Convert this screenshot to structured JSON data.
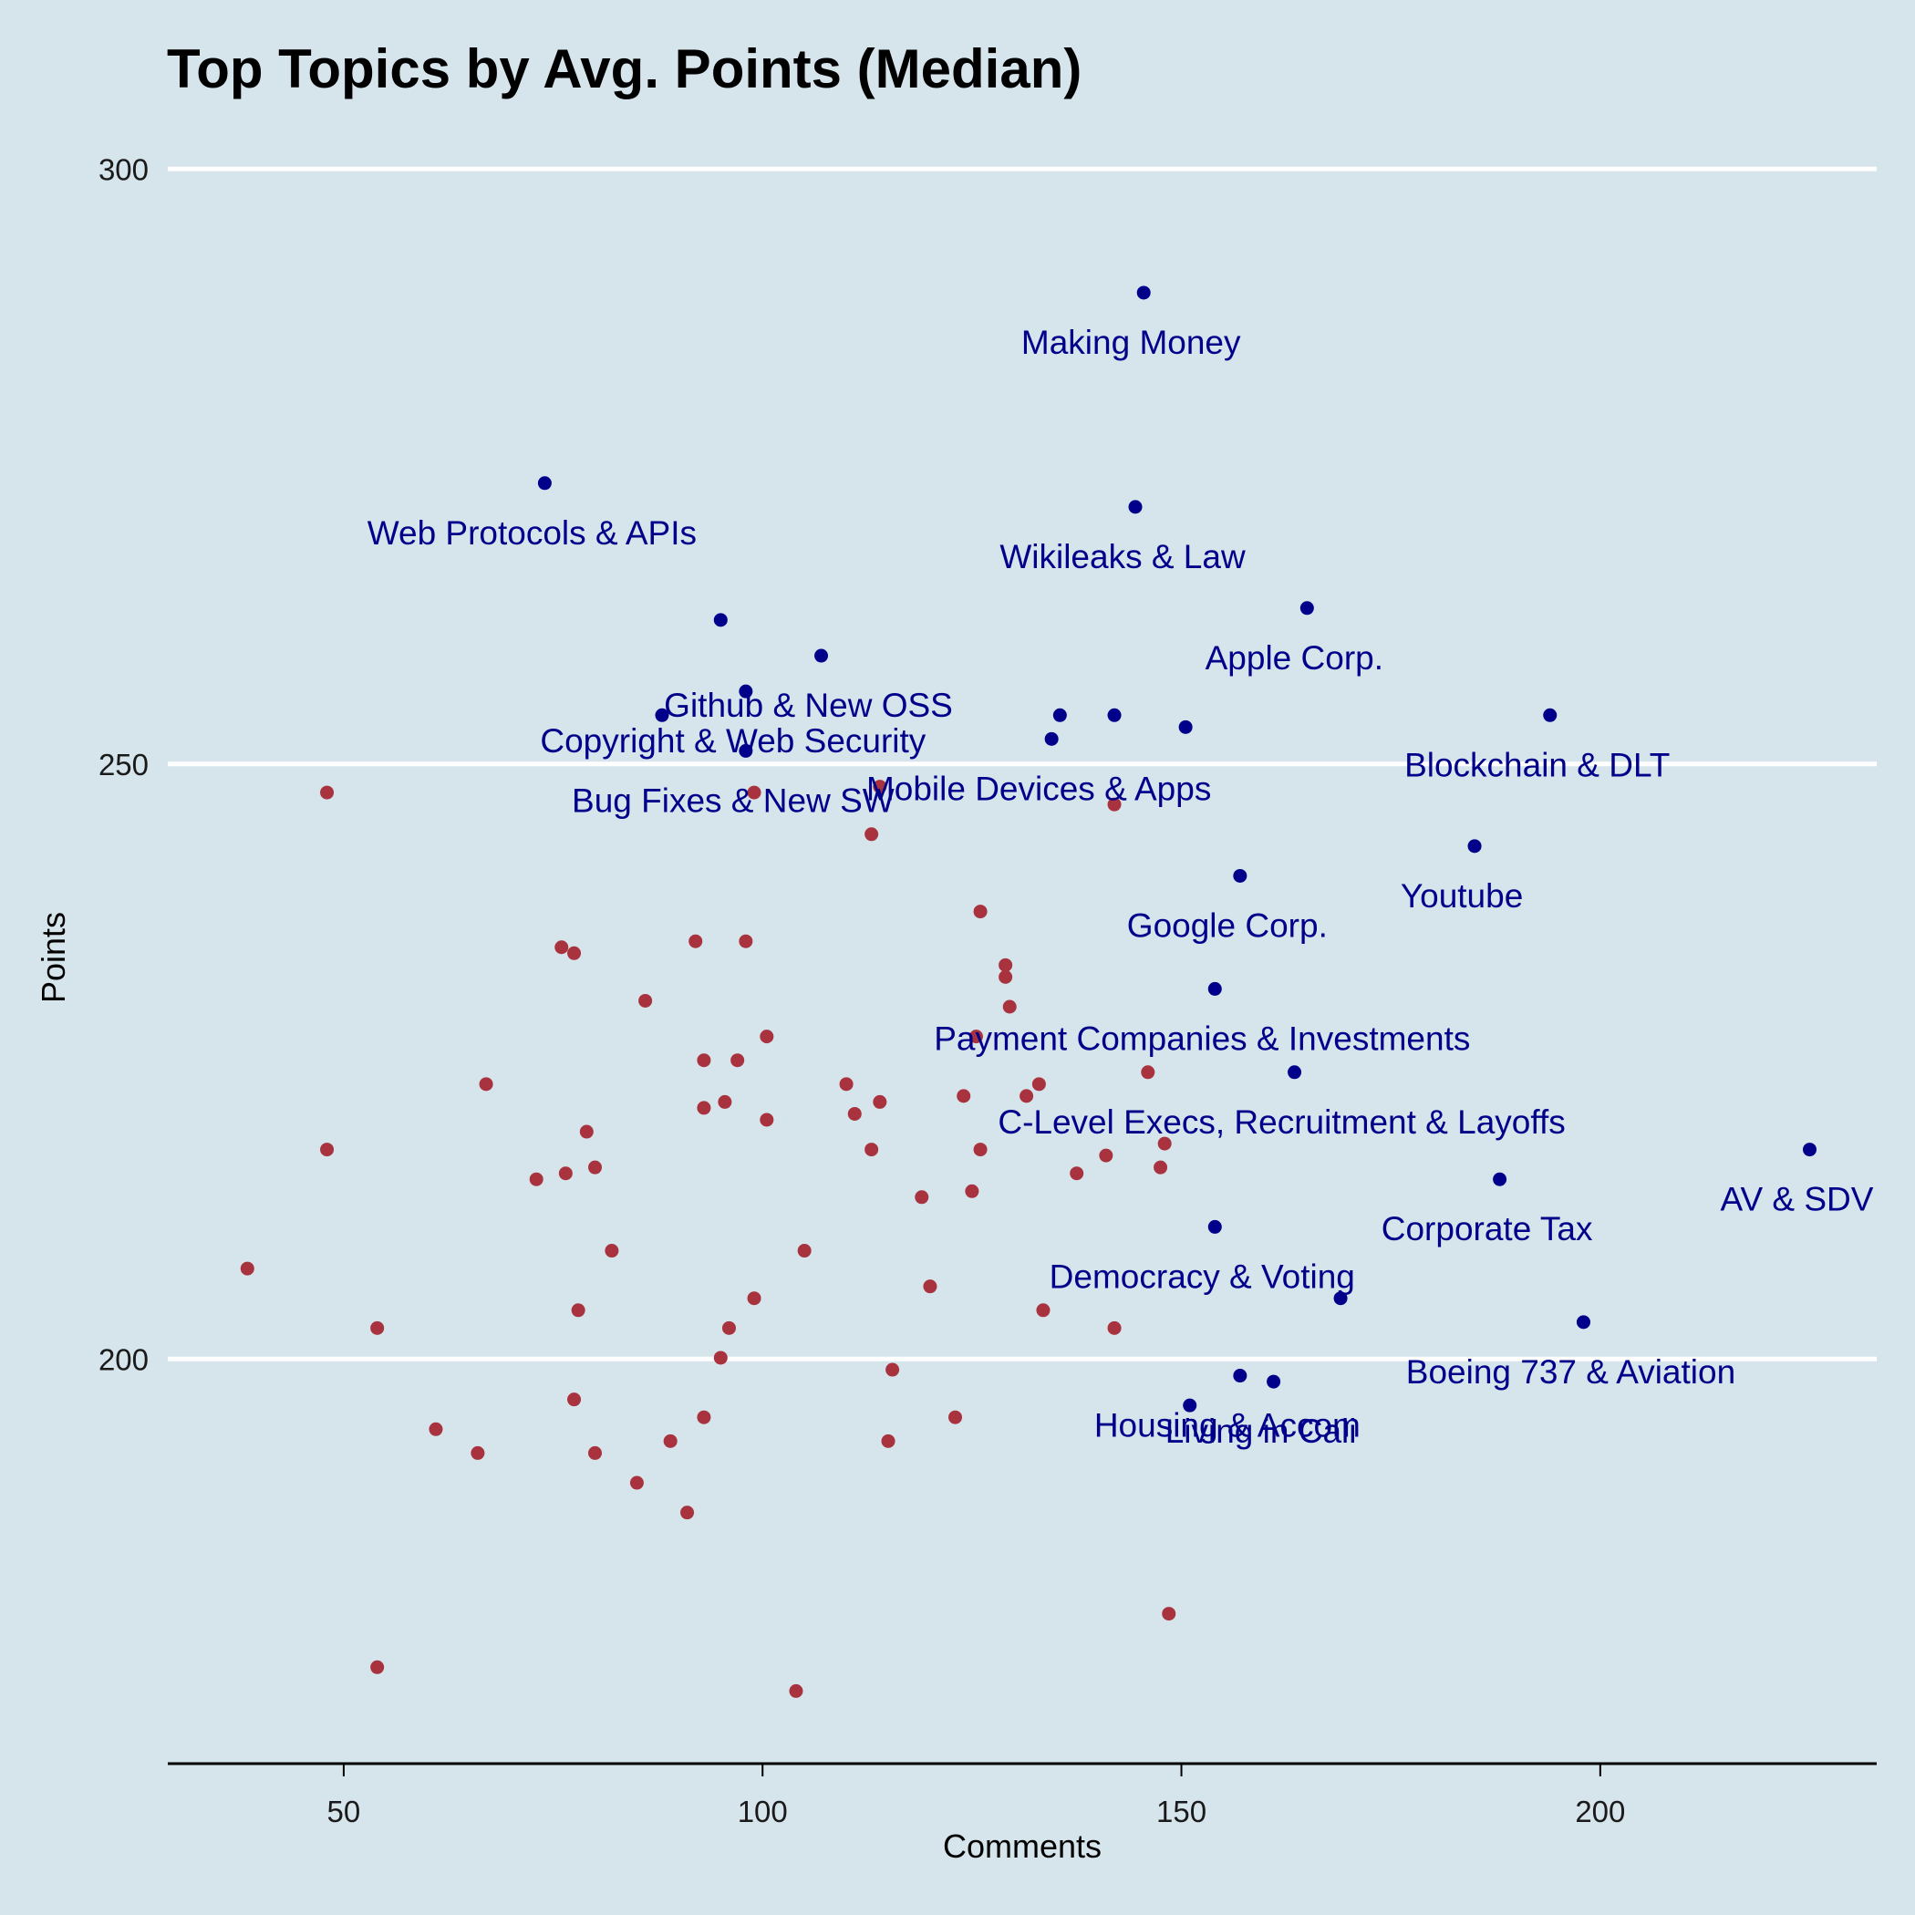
{
  "colors": {
    "background": "#d6e4eb",
    "grid": "#ffffff",
    "highlight": "#00008b",
    "other": "#a8323e"
  },
  "chart_data": {
    "type": "scatter",
    "title": "Top Topics by Avg. Points (Median)",
    "xlabel": "Comments",
    "ylabel": "Points",
    "xlim": [
      29,
      233
    ],
    "ylim": [
      166,
      305
    ],
    "xticks": [
      50,
      100,
      150,
      200
    ],
    "yticks": [
      200,
      250,
      300
    ],
    "grid": "horizontal",
    "labeled_points": [
      {
        "label": "Making Money",
        "x": 145.5,
        "y": 289.6
      },
      {
        "label": "Web Protocols & APIs",
        "x": 74,
        "y": 273.6
      },
      {
        "label": "Wikileaks & Law",
        "x": 144.5,
        "y": 271.6
      },
      {
        "label": "Apple Corp.",
        "x": 165,
        "y": 263.1
      },
      {
        "label": "Github & New OSS",
        "x": 107,
        "y": 259.1
      },
      {
        "label": "Bug Fixes & New SW",
        "x": 98,
        "y": 251.1
      },
      {
        "label": "Copyright & Web Security",
        "x": 98,
        "y": 256.1
      },
      {
        "label": "Mobile Devices & Apps",
        "x": 134.5,
        "y": 252.1
      },
      {
        "label": "Blockchain & DLT",
        "x": 194,
        "y": 254.1
      },
      {
        "label": "Youtube",
        "x": 185,
        "y": 243.1
      },
      {
        "label": "Google Corp.",
        "x": 157,
        "y": 240.6
      },
      {
        "label": "Payment Companies & Investments",
        "x": 154,
        "y": 231.1
      },
      {
        "label": "C-Level Execs, Recruitment & Layoffs",
        "x": 163.5,
        "y": 224.1
      },
      {
        "label": "AV & SDV",
        "x": 225,
        "y": 217.6
      },
      {
        "label": "Corporate Tax",
        "x": 188,
        "y": 215.1
      },
      {
        "label": "Democracy & Voting",
        "x": 154,
        "y": 211.1
      },
      {
        "label": "Boeing 737 & Aviation",
        "x": 198,
        "y": 203.1
      },
      {
        "label": "Housing & Accom",
        "x": 157,
        "y": 198.6
      },
      {
        "label": "Living in Cali",
        "x": 161,
        "y": 198.1
      }
    ],
    "unlabeled_highlight_points": [
      {
        "x": 95,
        "y": 262.1
      },
      {
        "x": 88,
        "y": 254.1
      },
      {
        "x": 135.5,
        "y": 254.1
      },
      {
        "x": 142,
        "y": 254.1
      },
      {
        "x": 150.5,
        "y": 253.1
      },
      {
        "x": 169,
        "y": 205.1
      },
      {
        "x": 151,
        "y": 196.1
      }
    ],
    "other_points": [
      {
        "x": 48,
        "y": 247.6
      },
      {
        "x": 114,
        "y": 248.1
      },
      {
        "x": 99,
        "y": 247.6
      },
      {
        "x": 142,
        "y": 246.6
      },
      {
        "x": 113,
        "y": 244.1
      },
      {
        "x": 126,
        "y": 237.6
      },
      {
        "x": 92,
        "y": 235.1
      },
      {
        "x": 98,
        "y": 235.1
      },
      {
        "x": 76,
        "y": 234.6
      },
      {
        "x": 77.5,
        "y": 234.1
      },
      {
        "x": 129,
        "y": 233.1
      },
      {
        "x": 129,
        "y": 232.1
      },
      {
        "x": 86,
        "y": 230.1
      },
      {
        "x": 129.5,
        "y": 229.6
      },
      {
        "x": 100.5,
        "y": 227.1
      },
      {
        "x": 125.5,
        "y": 227.1
      },
      {
        "x": 93,
        "y": 225.1
      },
      {
        "x": 97,
        "y": 225.1
      },
      {
        "x": 146,
        "y": 224.1
      },
      {
        "x": 67,
        "y": 223.1
      },
      {
        "x": 110,
        "y": 223.1
      },
      {
        "x": 133,
        "y": 223.1
      },
      {
        "x": 124,
        "y": 222.1
      },
      {
        "x": 131.5,
        "y": 222.1
      },
      {
        "x": 95.5,
        "y": 221.6
      },
      {
        "x": 114,
        "y": 221.6
      },
      {
        "x": 93,
        "y": 221.1
      },
      {
        "x": 111,
        "y": 220.6
      },
      {
        "x": 100.5,
        "y": 220.1
      },
      {
        "x": 79,
        "y": 219.1
      },
      {
        "x": 48,
        "y": 217.6
      },
      {
        "x": 113,
        "y": 217.6
      },
      {
        "x": 126,
        "y": 217.6
      },
      {
        "x": 148,
        "y": 218.1
      },
      {
        "x": 141,
        "y": 217.1
      },
      {
        "x": 80,
        "y": 216.1
      },
      {
        "x": 147.5,
        "y": 216.1
      },
      {
        "x": 76.5,
        "y": 215.6
      },
      {
        "x": 137.5,
        "y": 215.6
      },
      {
        "x": 73,
        "y": 215.1
      },
      {
        "x": 125,
        "y": 214.1
      },
      {
        "x": 119,
        "y": 213.6
      },
      {
        "x": 82,
        "y": 209.1
      },
      {
        "x": 105,
        "y": 209.1
      },
      {
        "x": 38.5,
        "y": 207.6
      },
      {
        "x": 120,
        "y": 206.1
      },
      {
        "x": 99,
        "y": 205.1
      },
      {
        "x": 78,
        "y": 204.1
      },
      {
        "x": 133.5,
        "y": 204.1
      },
      {
        "x": 54,
        "y": 202.6
      },
      {
        "x": 96,
        "y": 202.6
      },
      {
        "x": 142,
        "y": 202.6
      },
      {
        "x": 95,
        "y": 200.1
      },
      {
        "x": 115.5,
        "y": 199.1
      },
      {
        "x": 77.5,
        "y": 196.6
      },
      {
        "x": 93,
        "y": 195.1
      },
      {
        "x": 123,
        "y": 195.1
      },
      {
        "x": 61,
        "y": 194.1
      },
      {
        "x": 89,
        "y": 193.1
      },
      {
        "x": 115,
        "y": 193.1
      },
      {
        "x": 66,
        "y": 192.1
      },
      {
        "x": 80,
        "y": 192.1
      },
      {
        "x": 85,
        "y": 189.6
      },
      {
        "x": 91,
        "y": 187.1
      },
      {
        "x": 148.5,
        "y": 178.6
      },
      {
        "x": 54,
        "y": 174.1
      },
      {
        "x": 104,
        "y": 172.1
      }
    ]
  }
}
